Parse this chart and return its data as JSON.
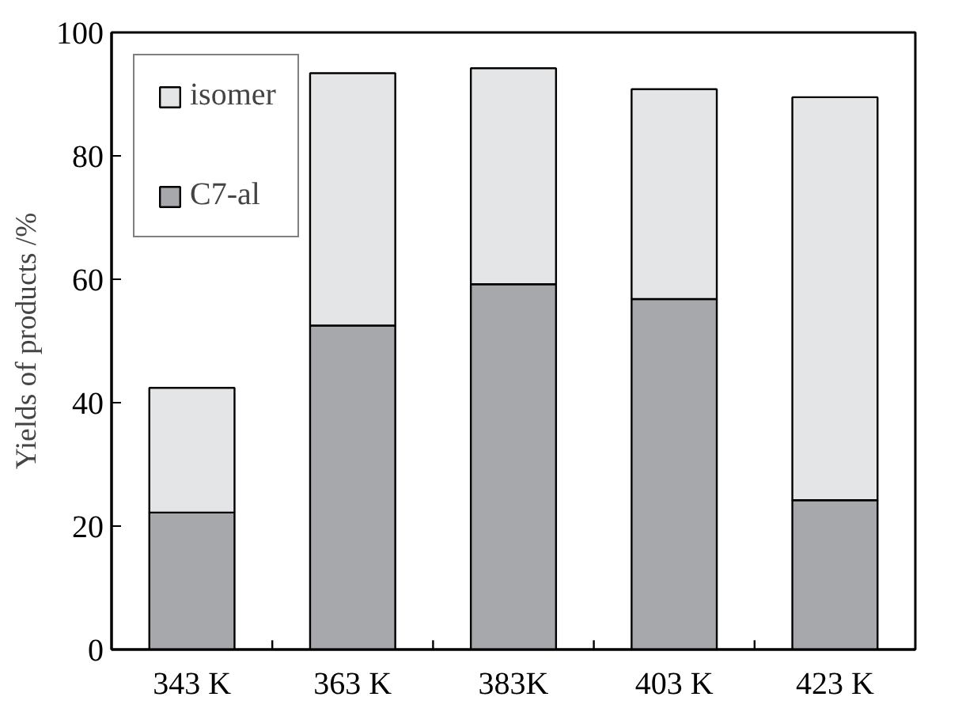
{
  "chart_data": {
    "type": "bar",
    "stacked": true,
    "ylabel": "Yields of products /%",
    "categories": [
      "343 K",
      "363 K",
      "383K",
      "403 K",
      "423 K"
    ],
    "series": [
      {
        "name": "C7-al",
        "color": "#a7a8ac",
        "values": [
          22.2,
          52.5,
          59.2,
          56.8,
          24.2
        ]
      },
      {
        "name": "isomer",
        "color": "#e4e5e7",
        "values": [
          20.2,
          40.9,
          35.0,
          34.0,
          65.3
        ]
      }
    ],
    "ylim": [
      0,
      100
    ],
    "yticks": [
      0,
      20,
      40,
      60,
      80,
      100
    ],
    "grid": false,
    "legend": "top left"
  }
}
